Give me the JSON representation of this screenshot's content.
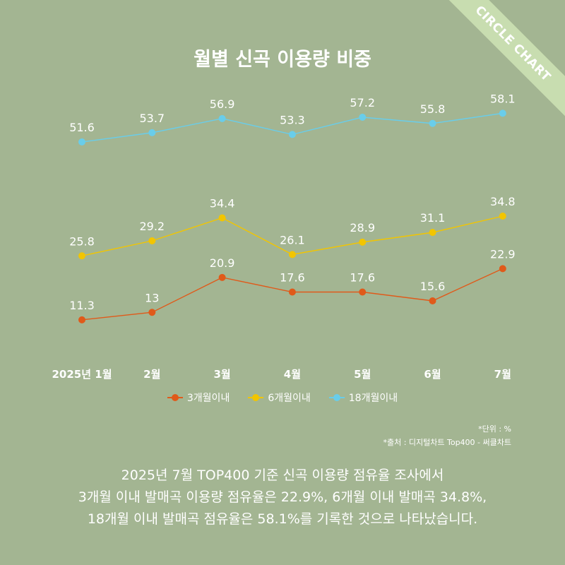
{
  "badge": "CIRCLE CHART",
  "chart_data": {
    "type": "line",
    "title": "월별 신곡 이용량 비중",
    "categories": [
      "2025년 1월",
      "2월",
      "3월",
      "4월",
      "5월",
      "6월",
      "7월"
    ],
    "series": [
      {
        "name": "3개월이내",
        "color": "#e05a1a",
        "values": [
          11.3,
          13,
          20.9,
          17.6,
          17.6,
          15.6,
          22.9
        ]
      },
      {
        "name": "6개월이내",
        "color": "#f2c500",
        "values": [
          25.8,
          29.2,
          34.4,
          26.1,
          28.9,
          31.1,
          34.8
        ]
      },
      {
        "name": "18개월이내",
        "color": "#69cdea",
        "values": [
          51.6,
          53.7,
          56.9,
          53.3,
          57.2,
          55.8,
          58.1
        ]
      }
    ],
    "grid": false,
    "legend_position": "bottom"
  },
  "notes": {
    "unit": "*단위 : %",
    "source": "*출처 :  디지털차트 Top400 - 써클차트"
  },
  "summary": [
    "2025년 7월 TOP400 기준 신곡 이용량 점유율 조사에서",
    "3개월 이내 발매곡 이용량 점유율은 22.9%, 6개월 이내 발매곡 34.8%,",
    "18개월 이내 발매곡 점유율은 58.1%를 기록한 것으로 나타났습니다."
  ]
}
